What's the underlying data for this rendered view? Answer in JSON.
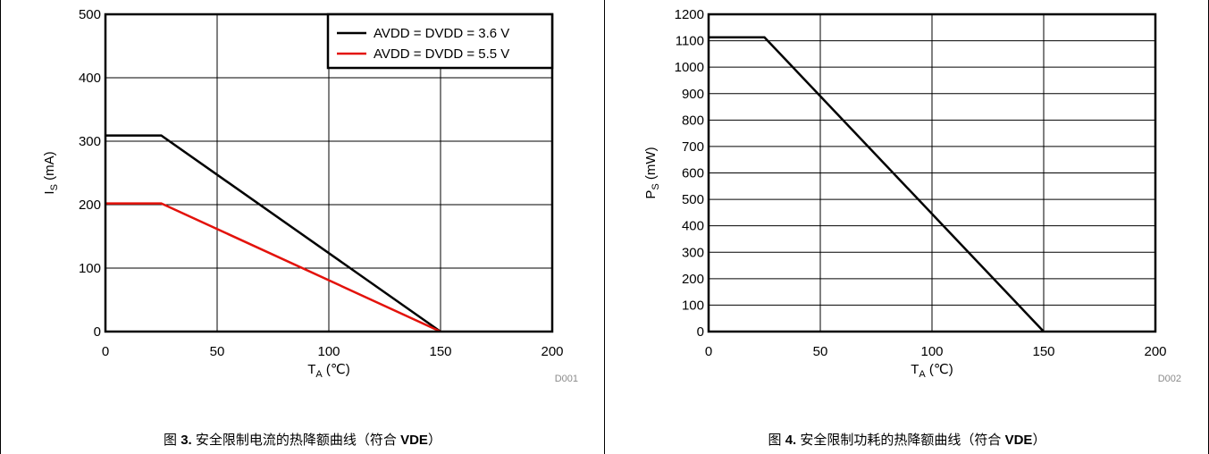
{
  "figures": [
    {
      "caption_prefix": "图",
      "caption_number": "3.",
      "caption_text": "安全限制电流的热降额曲线（符合",
      "caption_standard": "VDE",
      "caption_suffix": "）",
      "chart_id": "D001"
    },
    {
      "caption_prefix": "图",
      "caption_number": "4.",
      "caption_text": "安全限制功耗的热降额曲线（符合",
      "caption_standard": "VDE",
      "caption_suffix": "）",
      "chart_id": "D002"
    }
  ],
  "chart_data": [
    {
      "type": "line",
      "xlabel_main": "T",
      "xlabel_sub": "A",
      "xlabel_unit": " (℃)",
      "ylabel_main": "I",
      "ylabel_sub": "S",
      "ylabel_unit": " (mA)",
      "xlim": [
        0,
        200
      ],
      "ylim": [
        0,
        500
      ],
      "xticks": [
        0,
        50,
        100,
        150,
        200
      ],
      "yticks": [
        0,
        100,
        200,
        300,
        400,
        500
      ],
      "grid": true,
      "legend_position": "top-right",
      "series": [
        {
          "name": "AVDD = DVDD = 3.6 V",
          "color": "#000000",
          "x": [
            0,
            25,
            150
          ],
          "y": [
            309,
            309,
            0
          ]
        },
        {
          "name": "AVDD = DVDD = 5.5 V",
          "color": "#e3120b",
          "x": [
            0,
            25,
            150
          ],
          "y": [
            202,
            202,
            0
          ]
        }
      ]
    },
    {
      "type": "line",
      "xlabel_main": "T",
      "xlabel_sub": "A",
      "xlabel_unit": " (℃)",
      "ylabel_main": "P",
      "ylabel_sub": "S",
      "ylabel_unit": " (mW)",
      "xlim": [
        0,
        200
      ],
      "ylim": [
        0,
        1200
      ],
      "xticks": [
        0,
        50,
        100,
        150,
        200
      ],
      "yticks": [
        0,
        100,
        200,
        300,
        400,
        500,
        600,
        700,
        800,
        900,
        1000,
        1100,
        1200
      ],
      "grid": true,
      "legend_position": "none",
      "series": [
        {
          "color": "#000000",
          "x": [
            0,
            25,
            150
          ],
          "y": [
            1113,
            1113,
            0
          ]
        }
      ]
    }
  ]
}
